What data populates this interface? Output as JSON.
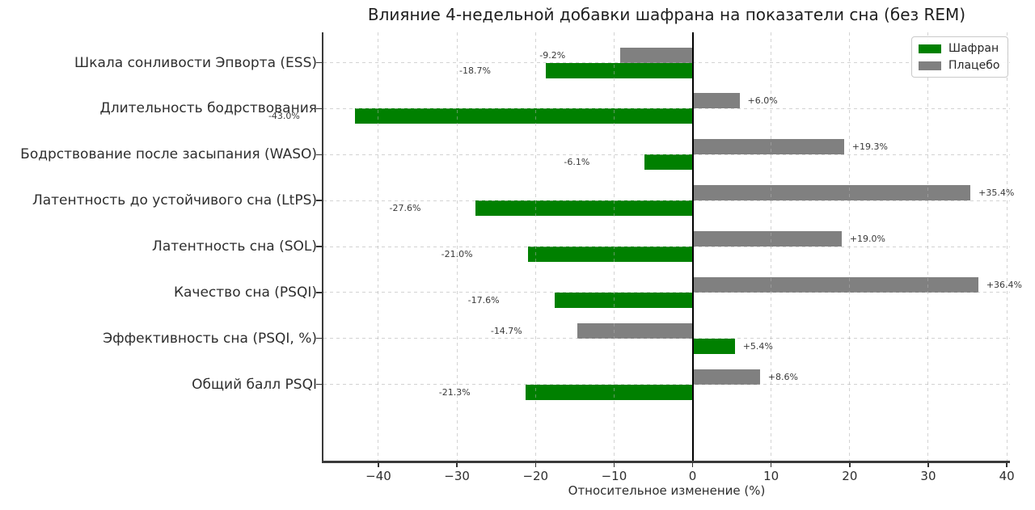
{
  "chart_data": {
    "type": "bar",
    "orientation": "horizontal",
    "title": "Влияние 4-недельной добавки шафрана на показатели сна (без REM)",
    "xlabel": "Относительное изменение (%)",
    "categories": [
      "Шкала сонливости Эпворта (ESS)",
      "Длительность бодрствования",
      "Бодрствование после засыпания (WASO)",
      "Латентность до устойчивого сна (LtPS)",
      "Латентность сна (SOL)",
      "Качество сна (PSQI)",
      "Эффективность сна (PSQI, %)",
      "Общий балл PSQI"
    ],
    "series": [
      {
        "name": "Шафран",
        "color": "#008000",
        "values": [
          -18.7,
          -43.0,
          -6.1,
          -27.6,
          -21.0,
          -17.6,
          5.4,
          -21.3
        ],
        "labels": [
          "-18.7%",
          "-43.0%",
          "-6.1%",
          "-27.6%",
          "-21.0%",
          "-17.6%",
          "+5.4%",
          "-21.3%"
        ]
      },
      {
        "name": "Плацебо",
        "color": "#808080",
        "values": [
          -9.2,
          6.0,
          19.3,
          35.4,
          19.0,
          36.4,
          -14.7,
          8.6
        ],
        "labels": [
          "-9.2%",
          "+6.0%",
          "+19.3%",
          "+35.4%",
          "+19.0%",
          "+36.4%",
          "-14.7%",
          "+8.6%"
        ]
      }
    ],
    "xlim": [
      -47.0,
      40.4
    ],
    "xticks": [
      -40,
      -30,
      -20,
      -10,
      0,
      10,
      20,
      30,
      40
    ],
    "xtick_labels": [
      "−40",
      "−30",
      "−20",
      "−10",
      "0",
      "10",
      "20",
      "30",
      "40"
    ],
    "grid": "dashed, both axes",
    "legend_position": "upper right",
    "zero_line": "solid black vertical at 0"
  }
}
